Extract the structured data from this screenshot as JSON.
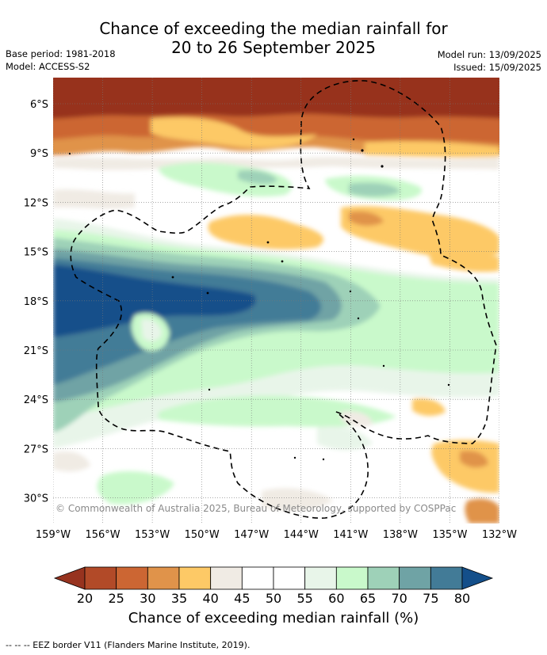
{
  "header": {
    "title_line1": "Chance of exceeding the median rainfall for",
    "title_line2": "20 to 26 September 2025",
    "base_period": "Base period: 1981-2018",
    "model": "Model: ACCESS-S2",
    "model_run": "Model run: 13/09/2025",
    "issued": "Issued: 15/09/2025"
  },
  "map": {
    "lat_labels": [
      "6°S",
      "9°S",
      "12°S",
      "15°S",
      "18°S",
      "21°S",
      "24°S",
      "27°S",
      "30°S"
    ],
    "lon_labels": [
      "159°W",
      "156°W",
      "153°W",
      "150°W",
      "147°W",
      "144°W",
      "141°W",
      "138°W",
      "135°W",
      "132°W"
    ],
    "copyright": "© Commonwealth of Australia 2025, Bureau of Meteorology, supported by COSPPac"
  },
  "colorbar": {
    "title": "Chance of exceeding median rainfall (%)",
    "ticks": [
      "20",
      "25",
      "30",
      "35",
      "40",
      "45",
      "50",
      "55",
      "60",
      "65",
      "70",
      "75",
      "80"
    ],
    "colors": {
      "lt20": "#97331f",
      "20-25": "#b24a28",
      "25-30": "#cc6633",
      "30-35": "#e0934a",
      "35-40": "#fdc966",
      "40-45": "#f0ebe4",
      "45-50": "#ffffff",
      "50-55": "#ffffff",
      "55-60": "#e8f5e9",
      "60-65": "#c9f9cb",
      "65-70": "#9ed1b8",
      "70-75": "#6fa3a5",
      "75-80": "#427b97",
      "gt80": "#144f8a"
    }
  },
  "footnote": "-- -- -- EEZ border V11 (Flanders Marine Institute, 2019)."
}
